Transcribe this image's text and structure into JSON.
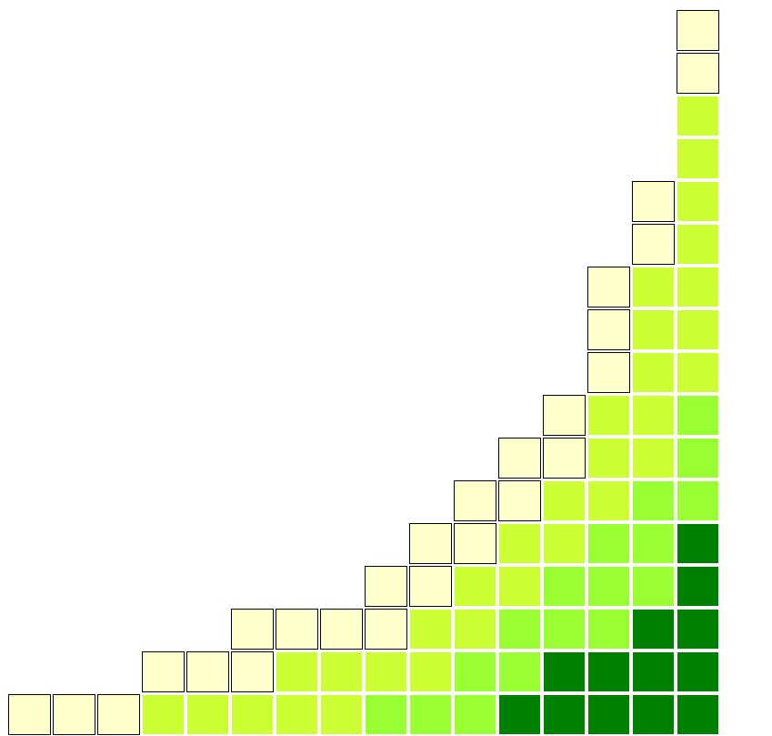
{
  "palette": {
    "0": "#ffffcc",
    "1": "#ccff33",
    "2": "#99ff33",
    "3": "#008000"
  },
  "columns": [
    [
      0
    ],
    [
      0
    ],
    [
      0
    ],
    [
      1,
      0
    ],
    [
      1,
      0
    ],
    [
      1,
      0,
      0
    ],
    [
      1,
      1,
      0
    ],
    [
      1,
      1,
      0
    ],
    [
      2,
      1,
      0,
      0
    ],
    [
      2,
      1,
      1,
      0,
      0
    ],
    [
      2,
      2,
      1,
      1,
      0,
      0
    ],
    [
      3,
      2,
      2,
      1,
      1,
      0,
      0
    ],
    [
      3,
      3,
      2,
      2,
      1,
      1,
      0,
      0
    ],
    [
      3,
      3,
      2,
      2,
      2,
      1,
      1,
      1,
      0,
      0,
      0
    ],
    [
      3,
      3,
      3,
      2,
      2,
      2,
      1,
      1,
      1,
      1,
      1,
      0,
      0
    ],
    [
      3,
      3,
      3,
      3,
      3,
      2,
      2,
      2,
      1,
      1,
      1,
      1,
      1,
      1,
      1,
      0,
      0
    ]
  ]
}
